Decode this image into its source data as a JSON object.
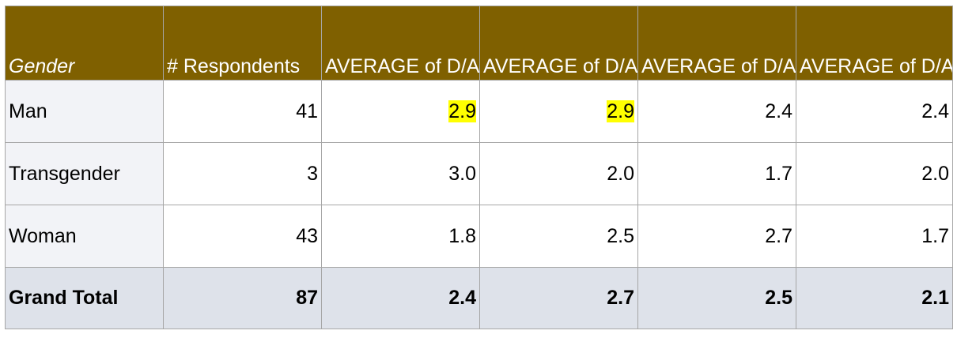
{
  "table": {
    "headers": [
      "Gender",
      "# Respondents",
      "AVERAGE of D/A Unfair (A)",
      "AVERAGE of D/A Unfair (B)",
      "AVERAGE of D/A Unfair (C)",
      "AVERAGE of D/A Unfair (D)"
    ],
    "rows": [
      {
        "gender": "Man",
        "respondents": "41",
        "a": "2.9",
        "b": "2.9",
        "c": "2.4",
        "d": "2.4"
      },
      {
        "gender": "Transgender",
        "respondents": "3",
        "a": "3.0",
        "b": "2.0",
        "c": "1.7",
        "d": "2.0"
      },
      {
        "gender": "Woman",
        "respondents": "43",
        "a": "1.8",
        "b": "2.5",
        "c": "2.7",
        "d": "1.7"
      }
    ],
    "total": {
      "gender": "Grand Total",
      "respondents": "87",
      "a": "2.4",
      "b": "2.7",
      "c": "2.5",
      "d": "2.1"
    }
  },
  "colors": {
    "header_bg": "#7f6000",
    "header_text": "#ffffff",
    "label_bg": "#f2f3f7",
    "total_bg": "#dee2ea",
    "highlight": "#ffff00",
    "border": "#a6a6a6"
  }
}
